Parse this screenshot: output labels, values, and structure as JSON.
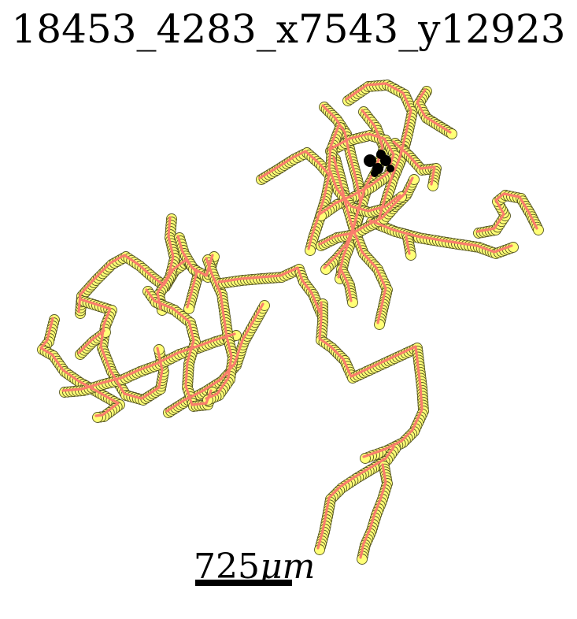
{
  "title": "18453_4283_x7543_y12923",
  "scale_bar": {
    "value": "725",
    "unit": "μm"
  },
  "colors": {
    "node_fill": "#ffff77",
    "node_stroke": "#555522",
    "edge": "#fa7e6c",
    "soma": "#000000",
    "background": "#ffffff"
  }
}
